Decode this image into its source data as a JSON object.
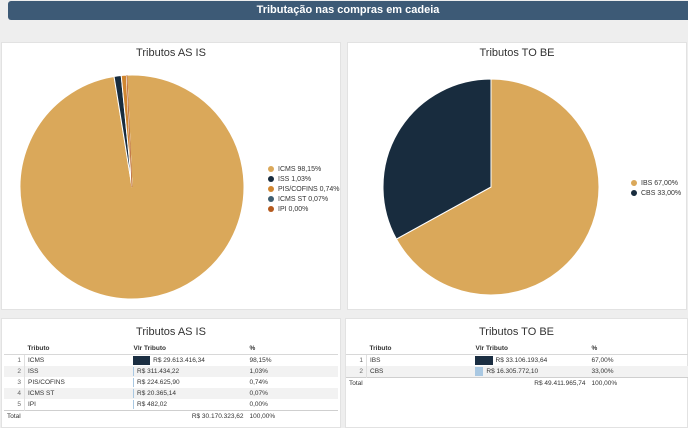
{
  "header": {
    "title": "Tributação nas compras em cadeia"
  },
  "colors": {
    "gold": "#daa85a",
    "navy": "#182c3e",
    "orange": "#d08631",
    "slate": "#3f5e70",
    "rust": "#b45a1e",
    "barDark": "#1b2e42",
    "barLight": "#a9c8e2"
  },
  "asis": {
    "title": "Tributos AS IS",
    "legend": [
      "ICMS 98,15%",
      "ISS 1,03%",
      "PIS/COFINS 0,74%",
      "ICMS ST 0,07%",
      "IPI 0,00%"
    ],
    "chart_data": {
      "type": "pie",
      "title": "Tributos AS IS",
      "labels": [
        "ICMS",
        "ISS",
        "PIS/COFINS",
        "ICMS ST",
        "IPI"
      ],
      "values": [
        98.15,
        1.03,
        0.74,
        0.07,
        0.0
      ],
      "colors": [
        "#daa85a",
        "#182c3e",
        "#d08631",
        "#3f5e70",
        "#b45a1e"
      ],
      "legend": "right"
    }
  },
  "tobe": {
    "title": "Tributos TO BE",
    "legend": [
      "IBS 67,00%",
      "CBS 33,00%"
    ],
    "chart_data": {
      "type": "pie",
      "title": "Tributos TO BE",
      "labels": [
        "IBS",
        "CBS"
      ],
      "values": [
        67.0,
        33.0
      ],
      "colors": [
        "#daa85a",
        "#182c3e"
      ],
      "legend": "right"
    }
  },
  "table_asis": {
    "title": "Tributos AS IS",
    "headers": [
      "Tributo",
      "Vlr Tributo",
      "%"
    ],
    "rows": [
      {
        "n": "1",
        "tributo": "ICMS",
        "valor": "R$ 29.613.416,34",
        "pct": "98,15%",
        "share": 0.9815
      },
      {
        "n": "2",
        "tributo": "ISS",
        "valor": "R$ 311.434,22",
        "pct": "1,03%",
        "share": 0.0103
      },
      {
        "n": "3",
        "tributo": "PIS/COFINS",
        "valor": "R$ 224.625,90",
        "pct": "0,74%",
        "share": 0.0074
      },
      {
        "n": "4",
        "tributo": "ICMS ST",
        "valor": "R$ 20.365,14",
        "pct": "0,07%",
        "share": 0.0007
      },
      {
        "n": "5",
        "tributo": "IPI",
        "valor": "R$ 482,02",
        "pct": "0,00%",
        "share": 0.0
      }
    ],
    "total": {
      "label": "Total",
      "valor": "R$ 30.170.323,62",
      "pct": "100,00%"
    }
  },
  "table_tobe": {
    "title": "Tributos TO BE",
    "headers": [
      "Tributo",
      "Vlr Tributo",
      "%"
    ],
    "rows": [
      {
        "n": "1",
        "tributo": "IBS",
        "valor": "R$ 33.106.193,64",
        "pct": "67,00%",
        "share": 0.67
      },
      {
        "n": "2",
        "tributo": "CBS",
        "valor": "R$ 16.305.772,10",
        "pct": "33,00%",
        "share": 0.33
      }
    ],
    "total": {
      "label": "Total",
      "valor": "R$ 49.411.965,74",
      "pct": "100,00%"
    }
  }
}
